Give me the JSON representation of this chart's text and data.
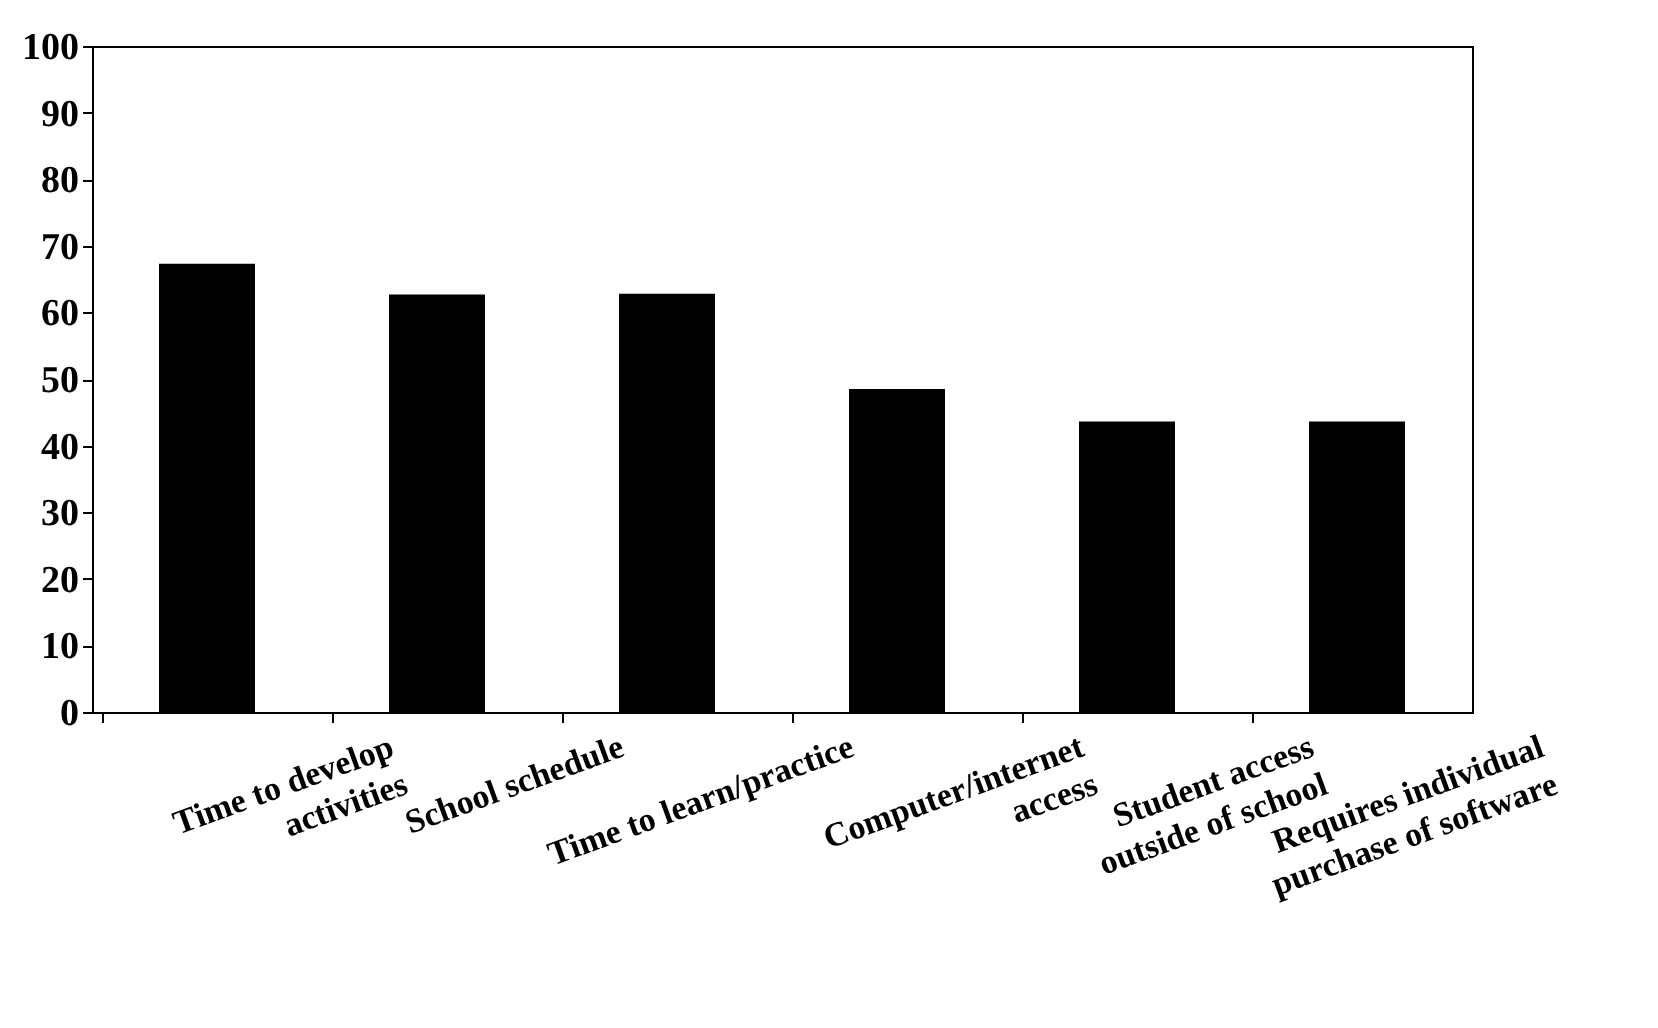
{
  "chart_data": {
    "type": "bar",
    "categories": [
      "Time to develop\nactivities",
      "School schedule",
      "Time to learn/practice",
      "Computer/internet\naccess",
      "Student access\noutside of school",
      "Requires individual\npurchase of software"
    ],
    "values": [
      67.3,
      62.7,
      62.8,
      48.5,
      43.6,
      43.6
    ],
    "color": "#000000",
    "ylim": [
      0,
      100
    ],
    "yticks": [
      0,
      10,
      20,
      30,
      40,
      50,
      60,
      70,
      80,
      90,
      100
    ],
    "grid": false
  }
}
